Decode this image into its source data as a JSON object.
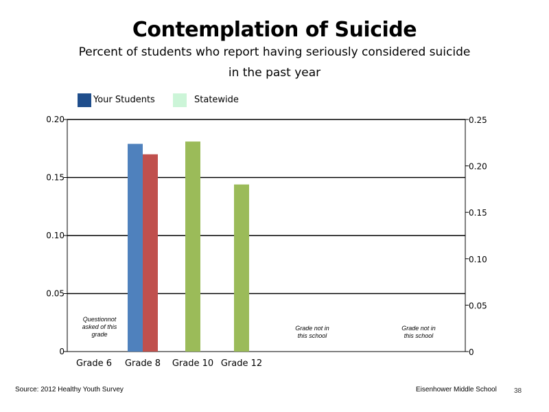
{
  "title": "Contemplation of Suicide",
  "subtitle_line1": "Percent of students who report having seriously considered suicide",
  "subtitle_line2": "in the past year",
  "legend": [
    {
      "label": "Your Students",
      "color": "#1f4e8c"
    },
    {
      "label": "Statewide",
      "color": "#ccf5d8"
    }
  ],
  "footer": {
    "source": "Source: 2012 Healthy Youth Survey",
    "school": "Eisenhower Middle  School",
    "page": "38"
  },
  "chart_data": {
    "type": "bar",
    "categories": [
      "Grade 6",
      "Grade 8",
      "Grade 10",
      "Grade 12"
    ],
    "series": [
      {
        "color": "#4f81bd",
        "axis": "left",
        "values": [
          null,
          0.179,
          null,
          null
        ]
      },
      {
        "color": "#c0504d",
        "axis": "left",
        "values": [
          null,
          0.17,
          null,
          null
        ]
      },
      {
        "color": "#9bbb59",
        "axis": "left",
        "values": [
          null,
          null,
          0.181,
          0.144
        ]
      }
    ],
    "y_left": {
      "ylim": [
        0,
        0.2
      ],
      "ticks": [
        "0",
        "0.05",
        "0.10",
        "0.15",
        "0.20"
      ],
      "tick_values": [
        0,
        0.05,
        0.1,
        0.15,
        0.2
      ]
    },
    "y_right": {
      "ylim": [
        0,
        0.25
      ],
      "ticks": [
        "0",
        "0.05",
        "0.10",
        "0.15",
        "0.20",
        "0.25"
      ],
      "tick_values": [
        0,
        0.05,
        0.1,
        0.15,
        0.2,
        0.25
      ]
    },
    "grid": true,
    "annotations": [
      {
        "lines": [
          "Questionnot",
          "asked of this",
          "grade"
        ]
      },
      {
        "lines": [
          "Grade not in",
          "this school"
        ]
      },
      {
        "lines": [
          "Grade not in",
          "this school"
        ]
      }
    ]
  }
}
